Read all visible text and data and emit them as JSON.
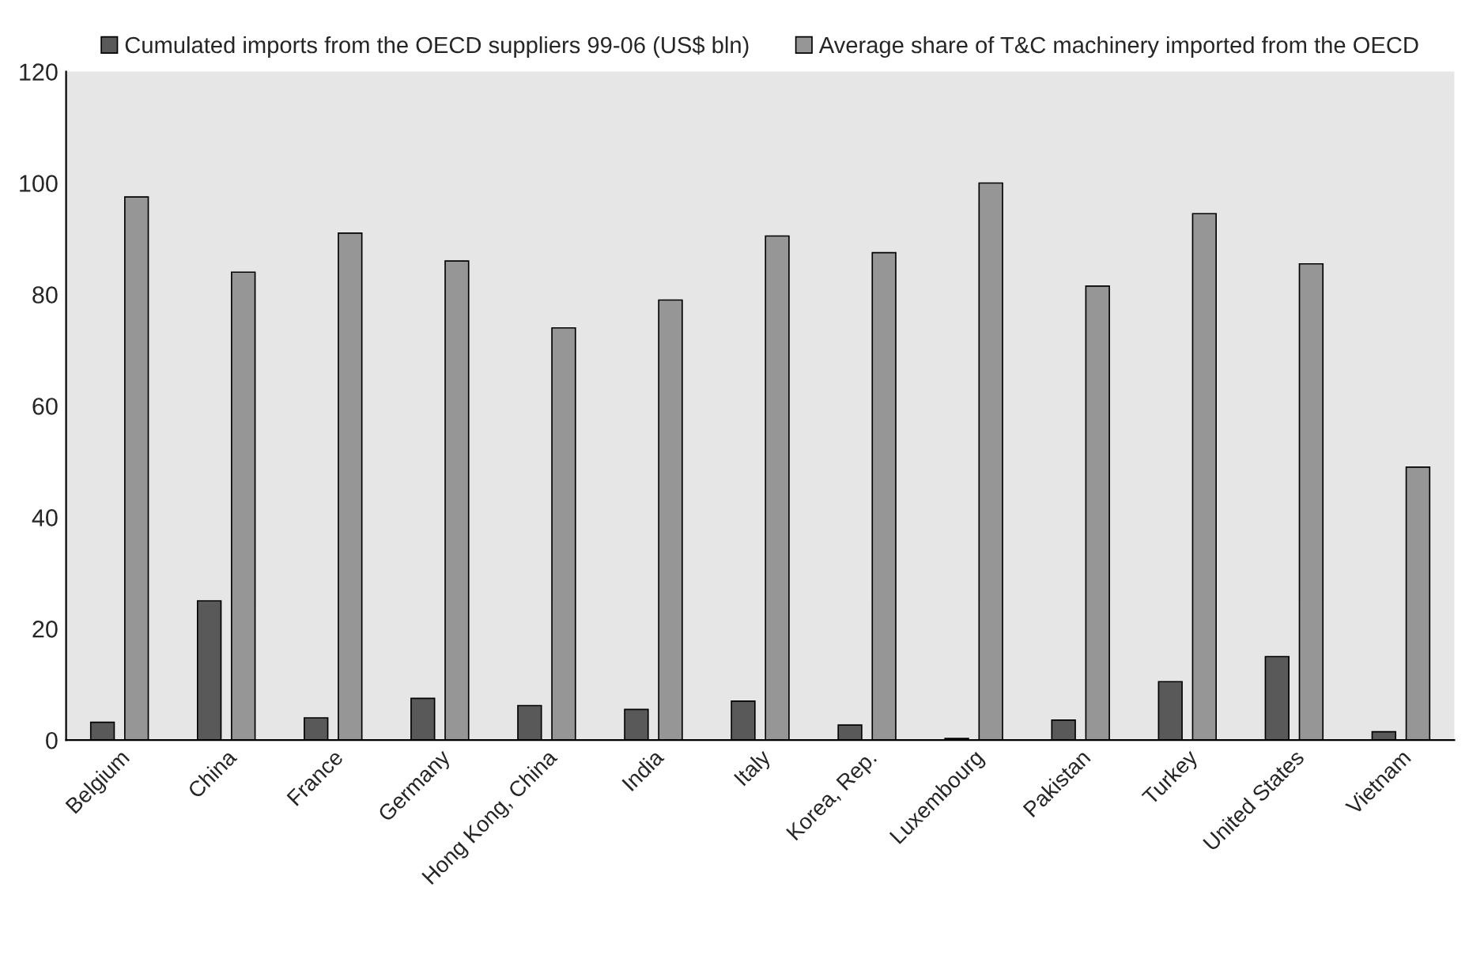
{
  "chart_data": {
    "type": "bar",
    "categories": [
      "Belgium",
      "China",
      "France",
      "Germany",
      "Hong Kong, China",
      "India",
      "Italy",
      "Korea, Rep.",
      "Luxembourg",
      "Pakistan",
      "Turkey",
      "United States",
      "Vietnam"
    ],
    "series": [
      {
        "name": "Cumulated imports from the OECD suppliers 99-06 (US$ bln)",
        "color": "#595959",
        "values": [
          3.2,
          25,
          4,
          7.5,
          6.2,
          5.5,
          7,
          2.7,
          0.3,
          3.6,
          10.5,
          15,
          1.5
        ]
      },
      {
        "name": "Average share of T&C machinery imported from the OECD",
        "color": "#969696",
        "values": [
          97.5,
          84,
          91,
          86,
          74,
          79,
          90.5,
          87.5,
          100,
          81.5,
          94.5,
          85.5,
          49
        ]
      }
    ],
    "ylim": [
      0,
      120
    ],
    "yticks": [
      0,
      20,
      40,
      60,
      80,
      100,
      120
    ],
    "grid": false,
    "legend": "top"
  }
}
